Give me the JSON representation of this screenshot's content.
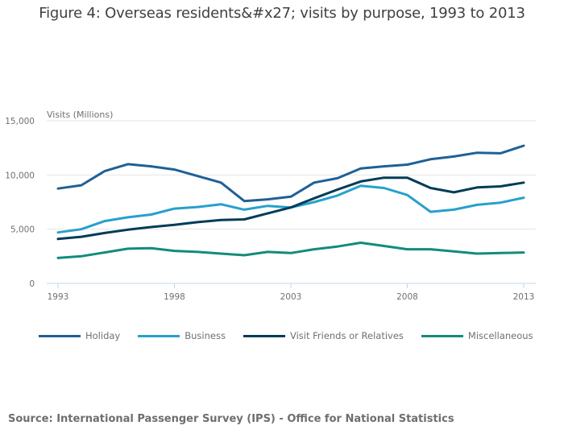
{
  "chart_data": {
    "type": "line",
    "title": "Figure 4: Overseas residents&#x27; visits by purpose, 1993 to 2013",
    "xlabel": "",
    "ylabel": "Visits (Millions)",
    "x": [
      1993,
      1994,
      1995,
      1996,
      1997,
      1998,
      1999,
      2000,
      2001,
      2002,
      2003,
      2004,
      2005,
      2006,
      2007,
      2008,
      2009,
      2010,
      2011,
      2012,
      2013
    ],
    "x_ticks": [
      1993,
      1998,
      2003,
      2008,
      2013
    ],
    "x_tick_labels": [
      "1993",
      "1998",
      "2003",
      "2008",
      "2013"
    ],
    "y_ticks": [
      0,
      5000,
      10000,
      15000
    ],
    "y_tick_labels": [
      "0",
      "5,000",
      "10,000",
      "15,000"
    ],
    "ylim": [
      0,
      15000
    ],
    "grid": true,
    "legend_position": "bottom",
    "series": [
      {
        "name": "Holiday",
        "color": "#206095",
        "values": [
          8750,
          9050,
          10350,
          11000,
          10800,
          10500,
          9900,
          9300,
          7600,
          7750,
          8000,
          9300,
          9700,
          10600,
          10800,
          10950,
          11450,
          11700,
          12050,
          12000,
          12700
        ]
      },
      {
        "name": "Business",
        "color": "#27a0cc",
        "values": [
          4700,
          5000,
          5750,
          6100,
          6350,
          6900,
          7050,
          7300,
          6800,
          7150,
          7000,
          7500,
          8100,
          9000,
          8800,
          8150,
          6600,
          6800,
          7250,
          7450,
          7900
        ]
      },
      {
        "name": "Visit Friends or Relatives",
        "color": "#003c57",
        "values": [
          4100,
          4300,
          4650,
          4950,
          5200,
          5400,
          5650,
          5850,
          5900,
          6450,
          7000,
          7850,
          8650,
          9400,
          9750,
          9750,
          8800,
          8400,
          8850,
          8950,
          9300
        ]
      },
      {
        "name": "Miscellaneous",
        "color": "#118c7b",
        "values": [
          2350,
          2500,
          2850,
          3200,
          3250,
          3000,
          2900,
          2750,
          2600,
          2900,
          2800,
          3150,
          3400,
          3750,
          3450,
          3150,
          3150,
          2950,
          2750,
          2800,
          2850
        ]
      }
    ]
  },
  "source": "Source: International Passenger Survey (IPS) - Office for National Statistics",
  "colors": {
    "grid": "#e6e6e6",
    "axis": "#c6d4e3",
    "text": "#707071"
  }
}
